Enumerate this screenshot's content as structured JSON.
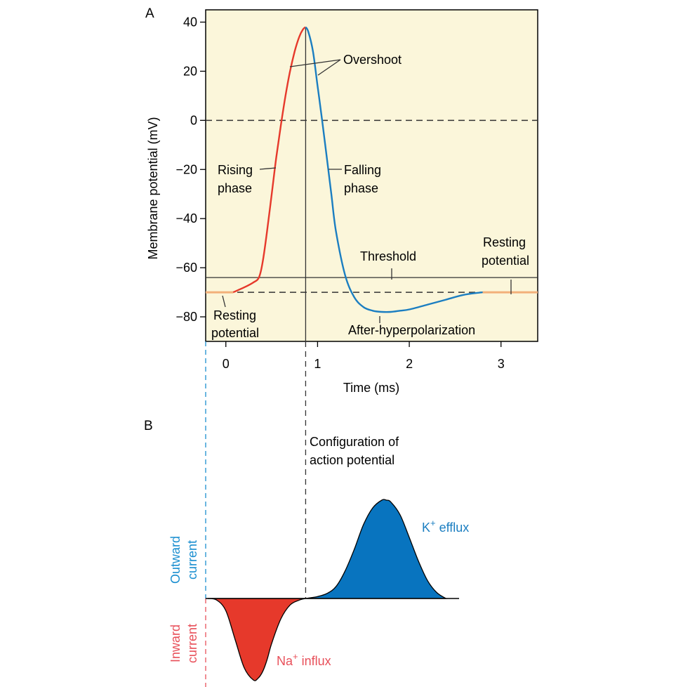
{
  "colors": {
    "plot_bg": "#fbf6da",
    "rising": "#e6392b",
    "falling": "#1b7ec1",
    "resting": "#f2b07a",
    "na_fill": "#e6392b",
    "k_fill": "#0874bf",
    "outward_text": "#1b8fd0",
    "inward_text": "#e8505a",
    "axis": "#000000"
  },
  "panel_a": {
    "label": "A",
    "chart_data": {
      "type": "line",
      "title": "",
      "xlabel": "Time (ms)",
      "ylabel": "Membrane potential (mV)",
      "xlim": [
        -0.22,
        3.4
      ],
      "ylim": [
        -90,
        45
      ],
      "xticks": [
        0,
        1,
        2,
        3
      ],
      "xtick_labels": [
        "0",
        "1",
        "2",
        "3"
      ],
      "yticks": [
        40,
        20,
        0,
        -20,
        -40,
        -60,
        -80
      ],
      "ytick_labels": [
        "40",
        "20",
        "0",
        "−20",
        "−40",
        "−60",
        "−80"
      ],
      "grid": false,
      "reference_lines": [
        {
          "name": "zero",
          "y": 0,
          "style": "dashed"
        },
        {
          "name": "resting",
          "y": -70,
          "style": "dashed"
        },
        {
          "name": "threshold",
          "y": -64,
          "style": "solid"
        }
      ],
      "peak_time_marker_x": 0.87,
      "series": [
        {
          "phase": "resting",
          "x": [
            -0.22,
            -0.1,
            0.0,
            0.08
          ],
          "y": [
            -70,
            -70,
            -70,
            -70
          ]
        },
        {
          "phase": "rising",
          "x": [
            0.08,
            0.2,
            0.3,
            0.36,
            0.4,
            0.45,
            0.5,
            0.55,
            0.6,
            0.65,
            0.7,
            0.75,
            0.8,
            0.84,
            0.87
          ],
          "y": [
            -70,
            -68,
            -66,
            -64,
            -58,
            -45,
            -30,
            -15,
            -2,
            10,
            20,
            28,
            34,
            37,
            38
          ]
        },
        {
          "phase": "falling",
          "x": [
            0.87,
            0.9,
            0.95,
            1.0,
            1.05,
            1.1,
            1.15,
            1.2,
            1.3,
            1.4,
            1.5,
            1.6,
            1.7,
            1.8,
            1.9,
            2.0,
            2.2,
            2.4,
            2.6,
            2.8
          ],
          "y": [
            38,
            36,
            28,
            14,
            0,
            -15,
            -30,
            -45,
            -63,
            -72,
            -76,
            -77.5,
            -78,
            -78,
            -77.5,
            -77,
            -75,
            -73,
            -71,
            -70
          ]
        },
        {
          "phase": "resting",
          "x": [
            2.8,
            3.0,
            3.2,
            3.4
          ],
          "y": [
            -70,
            -70,
            -70,
            -70
          ]
        }
      ],
      "annotations": [
        {
          "key": "overshoot",
          "text": [
            "Overshoot"
          ]
        },
        {
          "key": "rising",
          "text": [
            "Rising",
            "phase"
          ]
        },
        {
          "key": "falling",
          "text": [
            "Falling",
            "phase"
          ]
        },
        {
          "key": "threshold",
          "text": [
            "Threshold"
          ]
        },
        {
          "key": "resting_right",
          "text": [
            "Resting",
            "potential"
          ]
        },
        {
          "key": "resting_left",
          "text": [
            "Resting",
            "potential"
          ]
        },
        {
          "key": "ahp",
          "text": [
            "After-hyperpolarization"
          ]
        }
      ]
    }
  },
  "panel_b": {
    "label": "B",
    "configuration_label": [
      "Configuration of",
      "action potential"
    ],
    "outward_label": [
      "Outward",
      "current"
    ],
    "inward_label": [
      "Inward",
      "current"
    ],
    "k_label": {
      "base": "K",
      "sup": "+",
      "rest": " efflux"
    },
    "na_label": {
      "base": "Na",
      "sup": "+",
      "rest": " influx"
    },
    "chart_data": {
      "type": "area",
      "title": "",
      "xlabel": "",
      "ylabel": "",
      "x_axis": "Time (ms), aligned with panel A",
      "series": [
        {
          "name": "Na+ influx",
          "direction": "inward",
          "x": [
            -0.2,
            -0.1,
            0.0,
            0.1,
            0.2,
            0.3,
            0.35,
            0.4,
            0.45,
            0.5,
            0.6,
            0.7,
            0.8,
            0.87
          ],
          "y": [
            0,
            -0.02,
            -0.15,
            -0.5,
            -0.85,
            -1.0,
            -0.98,
            -0.9,
            -0.75,
            -0.55,
            -0.25,
            -0.08,
            -0.02,
            0
          ]
        },
        {
          "name": "K+ efflux",
          "direction": "outward",
          "x": [
            0.87,
            1.0,
            1.1,
            1.2,
            1.3,
            1.4,
            1.5,
            1.6,
            1.7,
            1.75,
            1.8,
            1.9,
            2.0,
            2.1,
            2.2,
            2.3,
            2.4
          ],
          "y": [
            0,
            0.02,
            0.05,
            0.12,
            0.28,
            0.5,
            0.75,
            0.92,
            1.0,
            1.0,
            0.98,
            0.85,
            0.62,
            0.38,
            0.18,
            0.06,
            0
          ]
        }
      ]
    }
  }
}
